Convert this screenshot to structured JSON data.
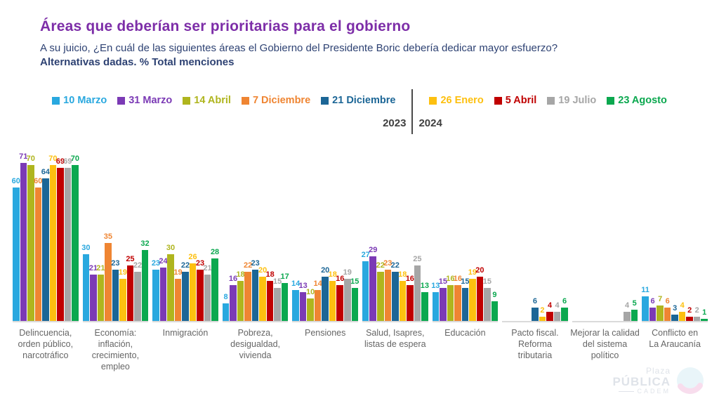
{
  "header": {
    "title": "Áreas que deberían ser prioritarias para el gobierno",
    "subtitle_line1": "A su juicio, ¿En cuál de las siguientes áreas el Gobierno del Presidente Boric debería dedicar mayor esfuerzo?",
    "subtitle_line2": "Alternativas dadas. % Total menciones"
  },
  "legend": {
    "year_left": "2023",
    "year_right": "2024",
    "divider_after_series_index": 4
  },
  "chart_data": {
    "type": "bar",
    "title": "Áreas que deberían ser prioritarias para el gobierno",
    "xlabel": "",
    "ylabel": "% Total menciones",
    "ylim": [
      0,
      72
    ],
    "grid": false,
    "legend_position": "top",
    "categories": [
      "Delincuencia,\norden público,\nnarcotráfico",
      "Economía:\ninflación,\ncrecimiento,\nempleo",
      "Inmigración",
      "Pobreza,\ndesigualdad,\nvivienda",
      "Pensiones",
      "Salud, Isapres,\nlistas de espera",
      "Educación",
      "Pacto fiscal.\nReforma\ntributaria",
      "Mejorar la calidad\ndel sistema\npolítico",
      "Conflicto en\nLa Araucanía"
    ],
    "series": [
      {
        "name": "10 Marzo",
        "year": "2023",
        "color": "#29A8DF",
        "values": [
          60,
          30,
          23,
          8,
          14,
          27,
          13,
          null,
          null,
          11
        ]
      },
      {
        "name": "31 Marzo",
        "year": "2023",
        "color": "#7B3AB5",
        "values": [
          71,
          21,
          24,
          16,
          13,
          29,
          15,
          null,
          null,
          6
        ]
      },
      {
        "name": "14 Abril",
        "year": "2023",
        "color": "#AFB51E",
        "values": [
          70,
          21,
          30,
          18,
          10,
          22,
          16,
          null,
          null,
          7
        ]
      },
      {
        "name": "7 Diciembre",
        "year": "2023",
        "color": "#EF8532",
        "values": [
          60,
          35,
          19,
          22,
          14,
          23,
          16,
          null,
          null,
          6
        ]
      },
      {
        "name": "21 Diciembre",
        "year": "2023",
        "color": "#1C6696",
        "values": [
          64,
          23,
          22,
          23,
          20,
          22,
          15,
          6,
          null,
          3
        ]
      },
      {
        "name": "26 Enero",
        "year": "2024",
        "color": "#FDC010",
        "values": [
          70,
          19,
          26,
          20,
          18,
          18,
          19,
          2,
          null,
          4
        ]
      },
      {
        "name": "5 Abril",
        "year": "2024",
        "color": "#C00000",
        "values": [
          69,
          25,
          23,
          18,
          16,
          16,
          20,
          4,
          null,
          2
        ]
      },
      {
        "name": "19 Julio",
        "year": "2024",
        "color": "#A6A6A6",
        "values": [
          69,
          22,
          21,
          15,
          19,
          25,
          15,
          4,
          4,
          2
        ]
      },
      {
        "name": "23 Agosto",
        "year": "2024",
        "color": "#0BA84F",
        "values": [
          70,
          32,
          28,
          17,
          15,
          13,
          9,
          6,
          5,
          1
        ]
      }
    ]
  },
  "footer": {
    "logo": {
      "line1": "Plaza",
      "line2": "PÚBLICA",
      "line3": "CADEM"
    }
  },
  "colors": {
    "title": "#7D2EA8",
    "subtitle": "#2E4273",
    "axis_line": "#dadada",
    "category_label": "#666666",
    "year_label": "#3f3f3f"
  }
}
